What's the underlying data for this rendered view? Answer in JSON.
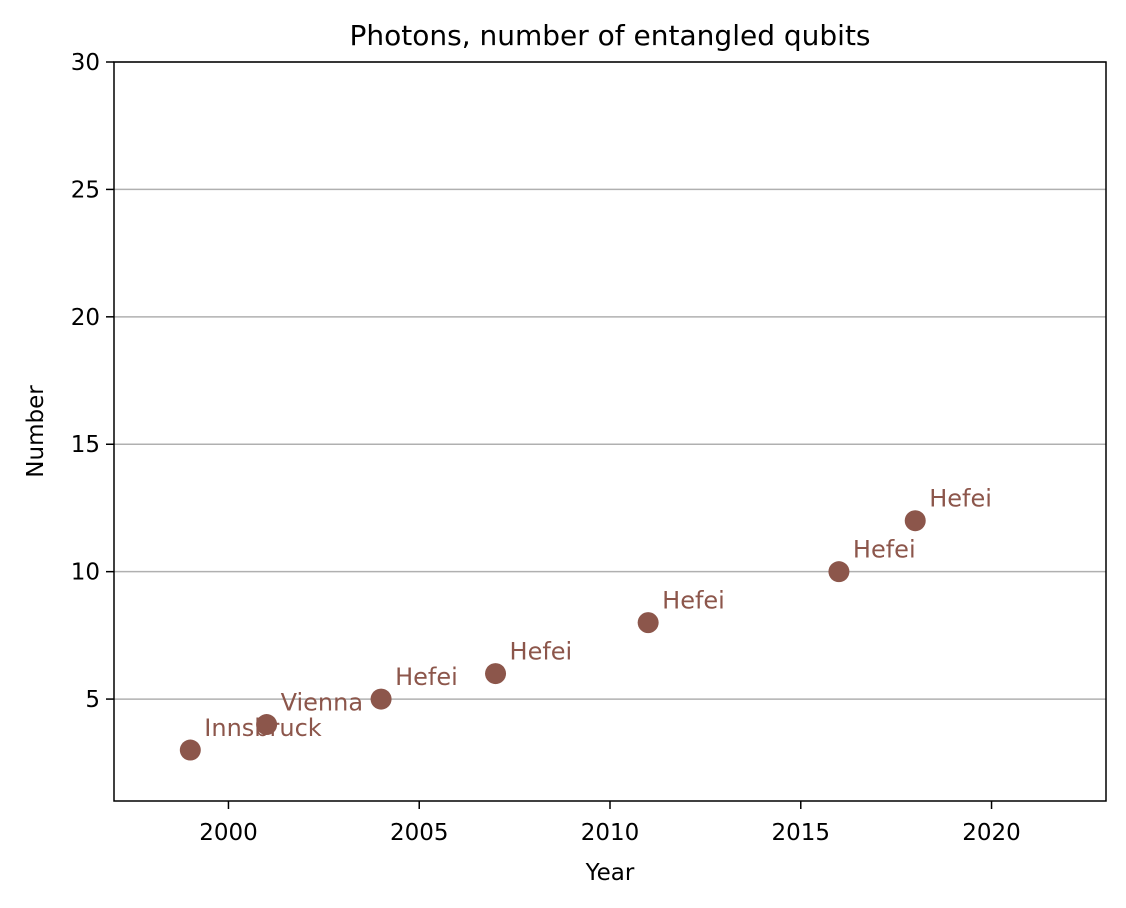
{
  "chart_data": {
    "type": "scatter",
    "title": "Photons, number of entangled qubits",
    "xlabel": "Year",
    "ylabel": "Number",
    "xlim": [
      1997,
      2023
    ],
    "ylim": [
      1,
      30
    ],
    "xticks": [
      2000,
      2005,
      2010,
      2015,
      2020
    ],
    "yticks": [
      5,
      10,
      15,
      20,
      25,
      30
    ],
    "grid": "y-major",
    "color": "#8c564b",
    "points": [
      {
        "x": 1999,
        "y": 3,
        "label": "Innsbruck"
      },
      {
        "x": 2001,
        "y": 4,
        "label": "Vienna"
      },
      {
        "x": 2004,
        "y": 5,
        "label": "Hefei"
      },
      {
        "x": 2007,
        "y": 6,
        "label": "Hefei"
      },
      {
        "x": 2011,
        "y": 8,
        "label": "Hefei"
      },
      {
        "x": 2016,
        "y": 10,
        "label": "Hefei"
      },
      {
        "x": 2018,
        "y": 12,
        "label": "Hefei"
      }
    ]
  }
}
